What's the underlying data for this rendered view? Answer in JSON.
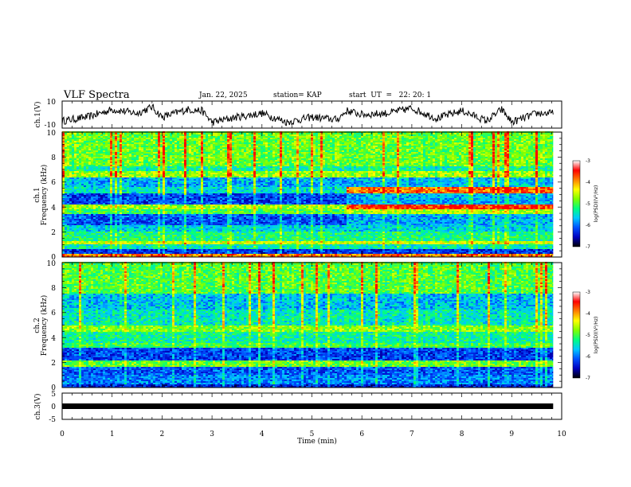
{
  "header": {
    "title": "VLF Spectra",
    "date": "Jan. 22, 2025",
    "station": "station= KAP",
    "start": "start  UT  =   22: 20: 1"
  },
  "chart_data": {
    "type": "heatmap",
    "title": "VLF Spectra",
    "xlabel": "Time (min)",
    "x_ticks": [
      "0",
      "1",
      "2",
      "3",
      "4",
      "5",
      "6",
      "7",
      "8",
      "9",
      "10"
    ],
    "xlim": [
      0,
      10
    ],
    "data_end_min": 9.83,
    "ch1_waveform": {
      "ylabel": "ch.1(V)",
      "ylim": [
        -10,
        10
      ],
      "y_ticks": [
        "10",
        "-10"
      ],
      "envelope": [
        [
          0,
          -5
        ],
        [
          0.5,
          -2
        ],
        [
          1,
          4
        ],
        [
          1.5,
          1
        ],
        [
          1.8,
          6
        ],
        [
          2,
          -2
        ],
        [
          2.5,
          4
        ],
        [
          2.8,
          3
        ],
        [
          3,
          -6
        ],
        [
          3.5,
          -2
        ],
        [
          4,
          1
        ],
        [
          4.5,
          -6
        ],
        [
          5,
          -2
        ],
        [
          5.5,
          -4
        ],
        [
          5.7,
          3
        ],
        [
          6,
          0
        ],
        [
          6.5,
          1
        ],
        [
          7,
          5
        ],
        [
          7.5,
          -3
        ],
        [
          8,
          3
        ],
        [
          8.5,
          -5
        ],
        [
          8.8,
          4
        ],
        [
          9,
          -6
        ],
        [
          9.5,
          1
        ],
        [
          9.83,
          1
        ]
      ]
    },
    "ch1_spectrogram": {
      "ylabel_channel": "ch.1",
      "ylabel": "Frequency (kHz)",
      "ylim": [
        0,
        10
      ],
      "y_ticks": [
        "0",
        "2",
        "4",
        "6",
        "8",
        "10"
      ],
      "bands": [
        {
          "from": 0,
          "to": 0.25,
          "level": -3.5,
          "after": -3.5
        },
        {
          "from": 0.25,
          "to": 0.6,
          "level": -6.2,
          "after": -6.2
        },
        {
          "from": 0.6,
          "to": 1.0,
          "level": -5.2,
          "after": -5.2
        },
        {
          "from": 1.0,
          "to": 1.3,
          "level": -4.2,
          "after": -4.2
        },
        {
          "from": 1.3,
          "to": 2.0,
          "level": -5.0,
          "after": -5.0
        },
        {
          "from": 2.0,
          "to": 2.6,
          "level": -5.4,
          "after": -5.4
        },
        {
          "from": 2.6,
          "to": 3.4,
          "level": -6.0,
          "after": -5.6
        },
        {
          "from": 3.4,
          "to": 3.8,
          "level": -4.8,
          "after": -4.3
        },
        {
          "from": 3.8,
          "to": 4.2,
          "level": -4.4,
          "after": -3.2
        },
        {
          "from": 4.2,
          "to": 5.1,
          "level": -6.1,
          "after": -5.6
        },
        {
          "from": 5.1,
          "to": 5.6,
          "level": -5.3,
          "after": -3.4
        },
        {
          "from": 5.6,
          "to": 6.4,
          "level": -5.6,
          "after": -5.5
        },
        {
          "from": 6.4,
          "to": 6.9,
          "level": -4.4,
          "after": -4.4
        },
        {
          "from": 6.9,
          "to": 7.3,
          "level": -5.1,
          "after": -5.1
        },
        {
          "from": 7.3,
          "to": 10,
          "level": -4.6,
          "after": -4.6
        }
      ],
      "change_min": 5.65
    },
    "ch2_spectrogram": {
      "ylabel_channel": "ch.2",
      "ylabel": "Frequency (kHz)",
      "ylim": [
        0,
        10
      ],
      "y_ticks": [
        "0",
        "2",
        "4",
        "6",
        "8",
        "10"
      ],
      "bands": [
        {
          "from": 0,
          "to": 0.3,
          "level": -6.3,
          "after": -6.3
        },
        {
          "from": 0.3,
          "to": 1.0,
          "level": -5.8,
          "after": -5.8
        },
        {
          "from": 1.0,
          "to": 1.6,
          "level": -6.0,
          "after": -6.0
        },
        {
          "from": 1.6,
          "to": 2.2,
          "level": -4.6,
          "after": -4.6
        },
        {
          "from": 2.2,
          "to": 3.2,
          "level": -6.1,
          "after": -6.1
        },
        {
          "from": 3.2,
          "to": 3.6,
          "level": -4.8,
          "after": -4.8
        },
        {
          "from": 3.6,
          "to": 4.4,
          "level": -5.1,
          "after": -5.1
        },
        {
          "from": 4.4,
          "to": 5.0,
          "level": -4.5,
          "after": -4.5
        },
        {
          "from": 5.0,
          "to": 6.2,
          "level": -5.2,
          "after": -5.2
        },
        {
          "from": 6.2,
          "to": 7.5,
          "level": -5.5,
          "after": -5.5
        },
        {
          "from": 7.5,
          "to": 10,
          "level": -4.7,
          "after": -4.7
        }
      ],
      "change_min": 6.9
    },
    "ch3_waveform": {
      "ylabel": "ch.3(V)",
      "ylim": [
        -5,
        5
      ],
      "y_ticks": [
        "5",
        "0",
        "-5"
      ],
      "level": 0
    },
    "colorbar": {
      "label": "log(PSD)(V²/Hz)",
      "range": [
        -7,
        -3
      ],
      "ticks": [
        "-3",
        "-4",
        "-5",
        "-6",
        "-7"
      ],
      "colors": [
        "#000000",
        "#0000c0",
        "#0050ff",
        "#00c8ff",
        "#00ff80",
        "#80ff00",
        "#ffff00",
        "#ff8000",
        "#ff0000",
        "#ffffff"
      ]
    }
  }
}
